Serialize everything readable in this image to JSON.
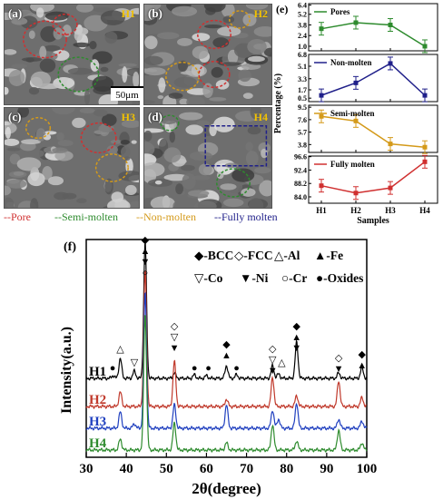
{
  "sem_panels": [
    {
      "letter": "(a)",
      "sample": "H1"
    },
    {
      "letter": "(b)",
      "sample": "H2"
    },
    {
      "letter": "(c)",
      "sample": "H3"
    },
    {
      "letter": "(d)",
      "sample": "H4"
    }
  ],
  "scale_bar": "50μm",
  "sem_legend": {
    "pore": "--Pore",
    "semi": "--Semi-molten",
    "non": "--Non-molten",
    "fully": "--Fully molten"
  },
  "colors": {
    "pore": "#d03030",
    "semi": "#2e8b2e",
    "non": "#d49a1a",
    "fully": "#20208a",
    "h1": "#000000",
    "h2": "#c0392b",
    "h3": "#1f3fbf",
    "h4": "#2e8b2e"
  },
  "chart_data": [
    {
      "type": "line",
      "panel_label": "(e)",
      "ylabel": "Percentage (%)",
      "xlabel": "Samples",
      "categories": [
        "H1",
        "H2",
        "H3",
        "H4"
      ],
      "subplots": [
        {
          "name": "Pores",
          "values": [
            3.3,
            4.1,
            3.8,
            1.0
          ],
          "yticks": [
            "1.0",
            "2.4",
            "3.8",
            "5.2",
            "6.4"
          ],
          "ylim": [
            0.4,
            6.6
          ]
        },
        {
          "name": "Non-molten",
          "values": [
            0.9,
            2.7,
            5.5,
            0.9
          ],
          "yticks": [
            "0.5",
            "1.7",
            "3.3",
            "5.1",
            "6.8"
          ],
          "ylim": [
            0.0,
            6.8
          ]
        },
        {
          "name": "Semi-molten",
          "values": [
            8.1,
            7.4,
            3.9,
            3.4
          ],
          "yticks": [
            "3.8",
            "5.7",
            "7.6",
            "9.5"
          ],
          "ylim": [
            2.6,
            9.8
          ]
        },
        {
          "name": "Fully molten",
          "values": [
            87.5,
            85.2,
            86.8,
            95.0
          ],
          "yticks": [
            "84.0",
            "88.2",
            "92.4",
            "96.6"
          ],
          "ylim": [
            82.0,
            96.8
          ]
        }
      ]
    },
    {
      "type": "line",
      "panel_label": "(f)",
      "xlabel": "2θ(degree)",
      "ylabel": "Intensity(a.u.)",
      "xlim": [
        30,
        100
      ],
      "xticks": [
        "30",
        "40",
        "50",
        "60",
        "70",
        "80",
        "90",
        "100"
      ],
      "series": [
        {
          "name": "H1"
        },
        {
          "name": "H2"
        },
        {
          "name": "H3"
        },
        {
          "name": "H4"
        }
      ],
      "phase_legend": [
        "◆-BCC",
        "◇-FCC",
        "△-Al",
        "▲-Fe",
        "▽-Co",
        "▼-Ni",
        "○-Cr",
        "●-Oxides"
      ],
      "peaks_2theta": [
        38.5,
        44.7,
        52.0,
        65.0,
        76.5,
        82.5,
        93.0,
        98.8
      ]
    }
  ]
}
